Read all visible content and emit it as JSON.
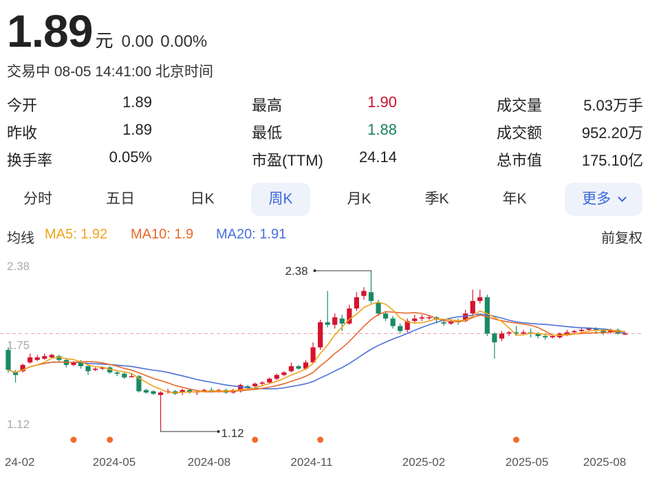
{
  "quote": {
    "price": "1.89",
    "unit": "元",
    "change": "0.00",
    "change_pct": "0.00%",
    "status": "交易中 08-05 14:41:00 北京时间"
  },
  "stats": [
    [
      {
        "label": "今开",
        "value": "1.89"
      },
      {
        "label": "最高",
        "value": "1.90",
        "color": "red"
      },
      {
        "label": "成交量",
        "value": "5.03万手"
      }
    ],
    [
      {
        "label": "昨收",
        "value": "1.89"
      },
      {
        "label": "最低",
        "value": "1.88",
        "color": "green"
      },
      {
        "label": "成交额",
        "value": "952.20万"
      }
    ],
    [
      {
        "label": "换手率",
        "value": "0.05%"
      },
      {
        "label": "市盈(TTM)",
        "value": "24.14"
      },
      {
        "label": "总市值",
        "value": "175.10亿"
      }
    ]
  ],
  "tabs": [
    "分时",
    "五日",
    "日K",
    "周K",
    "月K",
    "季K",
    "年K"
  ],
  "active_tab": "周K",
  "more_label": "更多",
  "ma": {
    "title": "均线",
    "ma5": "MA5: 1.92",
    "ma10": "MA10: 1.9",
    "ma20": "MA20: 1.91",
    "adjust": "前复权"
  },
  "colors": {
    "up": "#d5132f",
    "down": "#1a8a64",
    "ma5": "#f0a21a",
    "ma10": "#e8672a",
    "ma20": "#4a6fd8",
    "active_tab_bg": "#eef2fb",
    "active_tab_text": "#3966d9"
  },
  "chart_data": {
    "type": "candlestick",
    "y_ticks": [
      "2.38",
      "1.75",
      "1.12"
    ],
    "ylim": [
      1.12,
      2.38
    ],
    "x_ticks": [
      "24-02",
      "2024-05",
      "2024-08",
      "2024-11",
      "2025-02",
      "2025-05",
      "2025-08"
    ],
    "reference_line": 1.89,
    "max_label": "2.38",
    "min_label": "1.12",
    "event_markers": 5,
    "candles": [
      [
        1.76,
        1.6,
        1.78,
        1.58
      ],
      [
        1.58,
        1.56,
        1.6,
        1.5
      ],
      [
        1.59,
        1.64,
        1.65,
        1.58
      ],
      [
        1.66,
        1.7,
        1.73,
        1.65
      ],
      [
        1.68,
        1.7,
        1.72,
        1.67
      ],
      [
        1.69,
        1.71,
        1.73,
        1.68
      ],
      [
        1.7,
        1.72,
        1.73,
        1.69
      ],
      [
        1.71,
        1.68,
        1.72,
        1.66
      ],
      [
        1.68,
        1.64,
        1.69,
        1.62
      ],
      [
        1.64,
        1.66,
        1.67,
        1.63
      ],
      [
        1.67,
        1.63,
        1.68,
        1.61
      ],
      [
        1.63,
        1.59,
        1.64,
        1.56
      ],
      [
        1.6,
        1.61,
        1.62,
        1.59
      ],
      [
        1.61,
        1.62,
        1.63,
        1.6
      ],
      [
        1.62,
        1.58,
        1.63,
        1.57
      ],
      [
        1.58,
        1.57,
        1.59,
        1.55
      ],
      [
        1.57,
        1.54,
        1.58,
        1.53
      ],
      [
        1.55,
        1.55,
        1.57,
        1.54
      ],
      [
        1.55,
        1.43,
        1.56,
        1.42
      ],
      [
        1.44,
        1.42,
        1.45,
        1.41
      ],
      [
        1.43,
        1.41,
        1.44,
        1.4
      ],
      [
        1.4,
        1.42,
        1.43,
        1.12
      ],
      [
        1.43,
        1.43,
        1.45,
        1.41
      ],
      [
        1.43,
        1.41,
        1.44,
        1.4
      ],
      [
        1.42,
        1.44,
        1.45,
        1.4
      ],
      [
        1.44,
        1.42,
        1.45,
        1.41
      ],
      [
        1.42,
        1.43,
        1.44,
        1.4
      ],
      [
        1.43,
        1.44,
        1.45,
        1.42
      ],
      [
        1.44,
        1.43,
        1.46,
        1.42
      ],
      [
        1.43,
        1.44,
        1.45,
        1.42
      ],
      [
        1.44,
        1.42,
        1.45,
        1.41
      ],
      [
        1.42,
        1.44,
        1.45,
        1.41
      ],
      [
        1.43,
        1.48,
        1.49,
        1.42
      ],
      [
        1.47,
        1.46,
        1.48,
        1.45
      ],
      [
        1.47,
        1.49,
        1.5,
        1.46
      ],
      [
        1.49,
        1.5,
        1.51,
        1.48
      ],
      [
        1.5,
        1.53,
        1.54,
        1.49
      ],
      [
        1.53,
        1.56,
        1.57,
        1.52
      ],
      [
        1.56,
        1.58,
        1.59,
        1.55
      ],
      [
        1.59,
        1.63,
        1.66,
        1.58
      ],
      [
        1.63,
        1.61,
        1.64,
        1.6
      ],
      [
        1.61,
        1.66,
        1.68,
        1.6
      ],
      [
        1.66,
        1.78,
        1.82,
        1.65
      ],
      [
        1.78,
        1.98,
        2.0,
        1.76
      ],
      [
        1.98,
        1.96,
        2.23,
        1.94
      ],
      [
        1.96,
        2.02,
        2.05,
        1.93
      ],
      [
        2.01,
        1.97,
        2.04,
        1.91
      ],
      [
        1.97,
        2.09,
        2.12,
        1.96
      ],
      [
        2.09,
        2.18,
        2.22,
        2.07
      ],
      [
        2.19,
        2.23,
        2.26,
        2.16
      ],
      [
        2.22,
        2.15,
        2.38,
        2.13
      ],
      [
        2.14,
        2.05,
        2.16,
        2.03
      ],
      [
        2.05,
        2.01,
        2.07,
        1.99
      ],
      [
        2.01,
        1.95,
        2.03,
        1.93
      ],
      [
        1.95,
        1.91,
        1.97,
        1.89
      ],
      [
        1.92,
        1.99,
        2.01,
        1.9
      ],
      [
        1.99,
        2.01,
        2.04,
        1.97
      ],
      [
        2.01,
        2.02,
        2.04,
        1.99
      ],
      [
        2.02,
        2.02,
        2.03,
        2.0
      ],
      [
        2.02,
        2.0,
        2.03,
        1.97
      ],
      [
        1.98,
        1.97,
        1.99,
        1.95
      ],
      [
        1.97,
        1.99,
        2.0,
        1.96
      ],
      [
        1.99,
        1.98,
        2.01,
        1.96
      ],
      [
        1.99,
        2.05,
        2.08,
        1.98
      ],
      [
        2.05,
        2.15,
        2.24,
        2.04
      ],
      [
        2.15,
        2.18,
        2.24,
        2.13
      ],
      [
        2.18,
        1.89,
        2.2,
        1.87
      ],
      [
        1.89,
        1.82,
        1.9,
        1.69
      ],
      [
        1.85,
        1.89,
        1.91,
        1.83
      ],
      [
        1.89,
        1.9,
        1.91,
        1.87
      ],
      [
        1.9,
        1.89,
        1.95,
        1.87
      ],
      [
        1.89,
        1.9,
        1.92,
        1.88
      ],
      [
        1.9,
        1.89,
        1.93,
        1.86
      ],
      [
        1.89,
        1.87,
        1.9,
        1.85
      ],
      [
        1.87,
        1.86,
        1.89,
        1.84
      ],
      [
        1.86,
        1.87,
        1.88,
        1.85
      ],
      [
        1.86,
        1.89,
        1.9,
        1.85
      ],
      [
        1.88,
        1.9,
        1.92,
        1.87
      ],
      [
        1.9,
        1.91,
        1.92,
        1.88
      ],
      [
        1.91,
        1.92,
        1.94,
        1.9
      ],
      [
        1.92,
        1.93,
        1.94,
        1.91
      ],
      [
        1.93,
        1.92,
        1.94,
        1.9
      ],
      [
        1.92,
        1.9,
        1.93,
        1.88
      ],
      [
        1.9,
        1.92,
        1.93,
        1.89
      ],
      [
        1.92,
        1.89,
        1.93,
        1.88
      ],
      [
        1.89,
        1.89,
        1.9,
        1.88
      ]
    ]
  }
}
